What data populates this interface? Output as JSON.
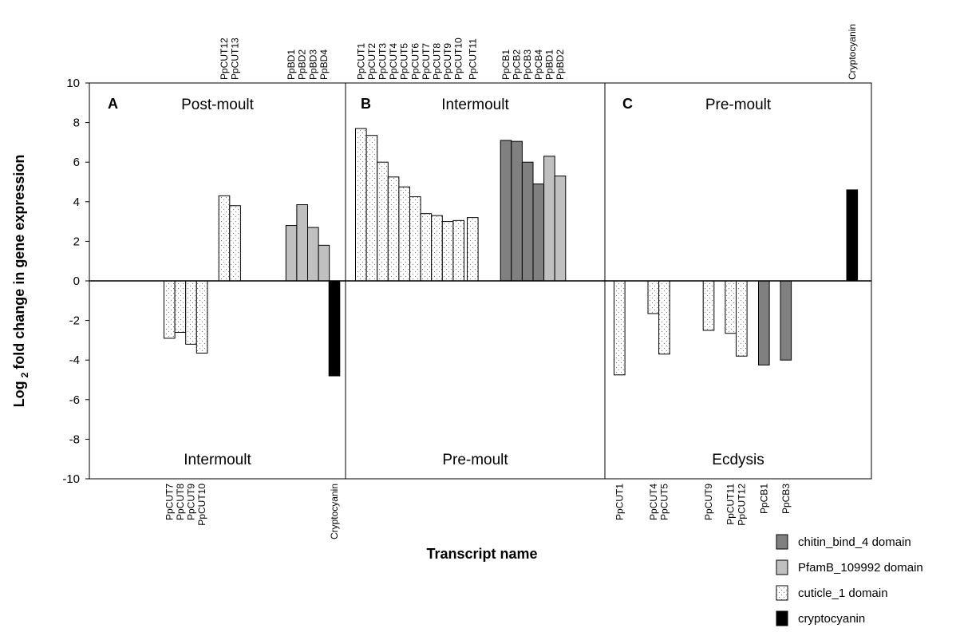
{
  "chart_data": {
    "type": "bar",
    "ylabel": "Log 2 fold change in gene expression",
    "ylabel_parts": {
      "before": "Log",
      "subscript": "2",
      "after": "fold change in gene expression"
    },
    "xlabel": "Transcript name",
    "ylim": [
      -10,
      10
    ],
    "yticks": [
      10,
      8,
      6,
      4,
      2,
      0,
      -2,
      -4,
      -6,
      -8,
      -10
    ],
    "ytick_labels": [
      "10",
      "8",
      "6",
      "4",
      "2",
      "0",
      "-2",
      "-4",
      "-6",
      "-8",
      "-10"
    ],
    "grid": false,
    "legend_position": "bottom-right",
    "categories_colors": {
      "chitin": "#808080",
      "pfamb": "#c0c0c0",
      "cuticle": "#f2f2f2",
      "crypto": "#000000"
    },
    "legend": [
      {
        "category": "chitin",
        "label": "chitin_bind_4 domain"
      },
      {
        "category": "pfamb",
        "label": "PfamB_109992 domain"
      },
      {
        "category": "cuticle",
        "label": "cuticle_1 domain"
      },
      {
        "category": "crypto",
        "label": "cryptocyanin"
      }
    ],
    "panels": [
      {
        "letter": "A",
        "top_label": "Post-moult",
        "bottom_label": "Intermoult",
        "bars": [
          {
            "name": "PpCUT7",
            "value": -2.9,
            "category": "cuticle"
          },
          {
            "name": "PpCUT8",
            "value": -2.6,
            "category": "cuticle"
          },
          {
            "name": "PpCUT9",
            "value": -3.2,
            "category": "cuticle"
          },
          {
            "name": "PpCUT10",
            "value": -3.65,
            "category": "cuticle"
          },
          {
            "name": "PpCUT12",
            "value": 4.3,
            "category": "cuticle"
          },
          {
            "name": "PpCUT13",
            "value": 3.8,
            "category": "cuticle"
          },
          {
            "name": "PpBD1",
            "value": 2.8,
            "category": "pfamb"
          },
          {
            "name": "PpBD2",
            "value": 3.85,
            "category": "pfamb"
          },
          {
            "name": "PpBD3",
            "value": 2.7,
            "category": "pfamb"
          },
          {
            "name": "PpBD4",
            "value": 1.8,
            "category": "pfamb"
          },
          {
            "name": "Cryptocyanin",
            "value": -4.8,
            "category": "crypto"
          }
        ]
      },
      {
        "letter": "B",
        "top_label": "Intermoult",
        "bottom_label": "Pre-moult",
        "bars": [
          {
            "name": "PpCUT1",
            "value": 7.7,
            "category": "cuticle"
          },
          {
            "name": "PpCUT2",
            "value": 7.35,
            "category": "cuticle"
          },
          {
            "name": "PpCUT3",
            "value": 6.0,
            "category": "cuticle"
          },
          {
            "name": "PpCUT4",
            "value": 5.25,
            "category": "cuticle"
          },
          {
            "name": "PpCUT5",
            "value": 4.75,
            "category": "cuticle"
          },
          {
            "name": "PpCUT6",
            "value": 4.25,
            "category": "cuticle"
          },
          {
            "name": "PpCUT7",
            "value": 3.4,
            "category": "cuticle"
          },
          {
            "name": "PpCUT8",
            "value": 3.3,
            "category": "cuticle"
          },
          {
            "name": "PpCUT9",
            "value": 3.0,
            "category": "cuticle"
          },
          {
            "name": "PpCUT10",
            "value": 3.05,
            "category": "cuticle"
          },
          {
            "name": "PpCUT11",
            "value": 3.2,
            "category": "cuticle"
          },
          {
            "name": "PpCB1",
            "value": 7.1,
            "category": "chitin"
          },
          {
            "name": "PpCB2",
            "value": 7.05,
            "category": "chitin"
          },
          {
            "name": "PpCB3",
            "value": 6.0,
            "category": "chitin"
          },
          {
            "name": "PpCB4",
            "value": 4.9,
            "category": "chitin"
          },
          {
            "name": "PpBD1",
            "value": 6.3,
            "category": "pfamb"
          },
          {
            "name": "PpBD2",
            "value": 5.3,
            "category": "pfamb"
          }
        ]
      },
      {
        "letter": "C",
        "top_label": "Pre-moult",
        "bottom_label": "Ecdysis",
        "bars": [
          {
            "name": "PpCUT1",
            "value": -4.75,
            "category": "cuticle"
          },
          {
            "name": "PpCUT4",
            "value": -1.65,
            "category": "cuticle"
          },
          {
            "name": "PpCUT5",
            "value": -3.7,
            "category": "cuticle"
          },
          {
            "name": "PpCUT9",
            "value": -2.5,
            "category": "cuticle"
          },
          {
            "name": "PpCUT11",
            "value": -2.65,
            "category": "cuticle"
          },
          {
            "name": "PpCUT12",
            "value": -3.8,
            "category": "cuticle"
          },
          {
            "name": "PpCB1",
            "value": -4.25,
            "category": "chitin"
          },
          {
            "name": "PpCB3",
            "value": -4.0,
            "category": "chitin"
          },
          {
            "name": "Cryptocyanin",
            "value": 4.6,
            "category": "crypto"
          }
        ]
      }
    ]
  }
}
